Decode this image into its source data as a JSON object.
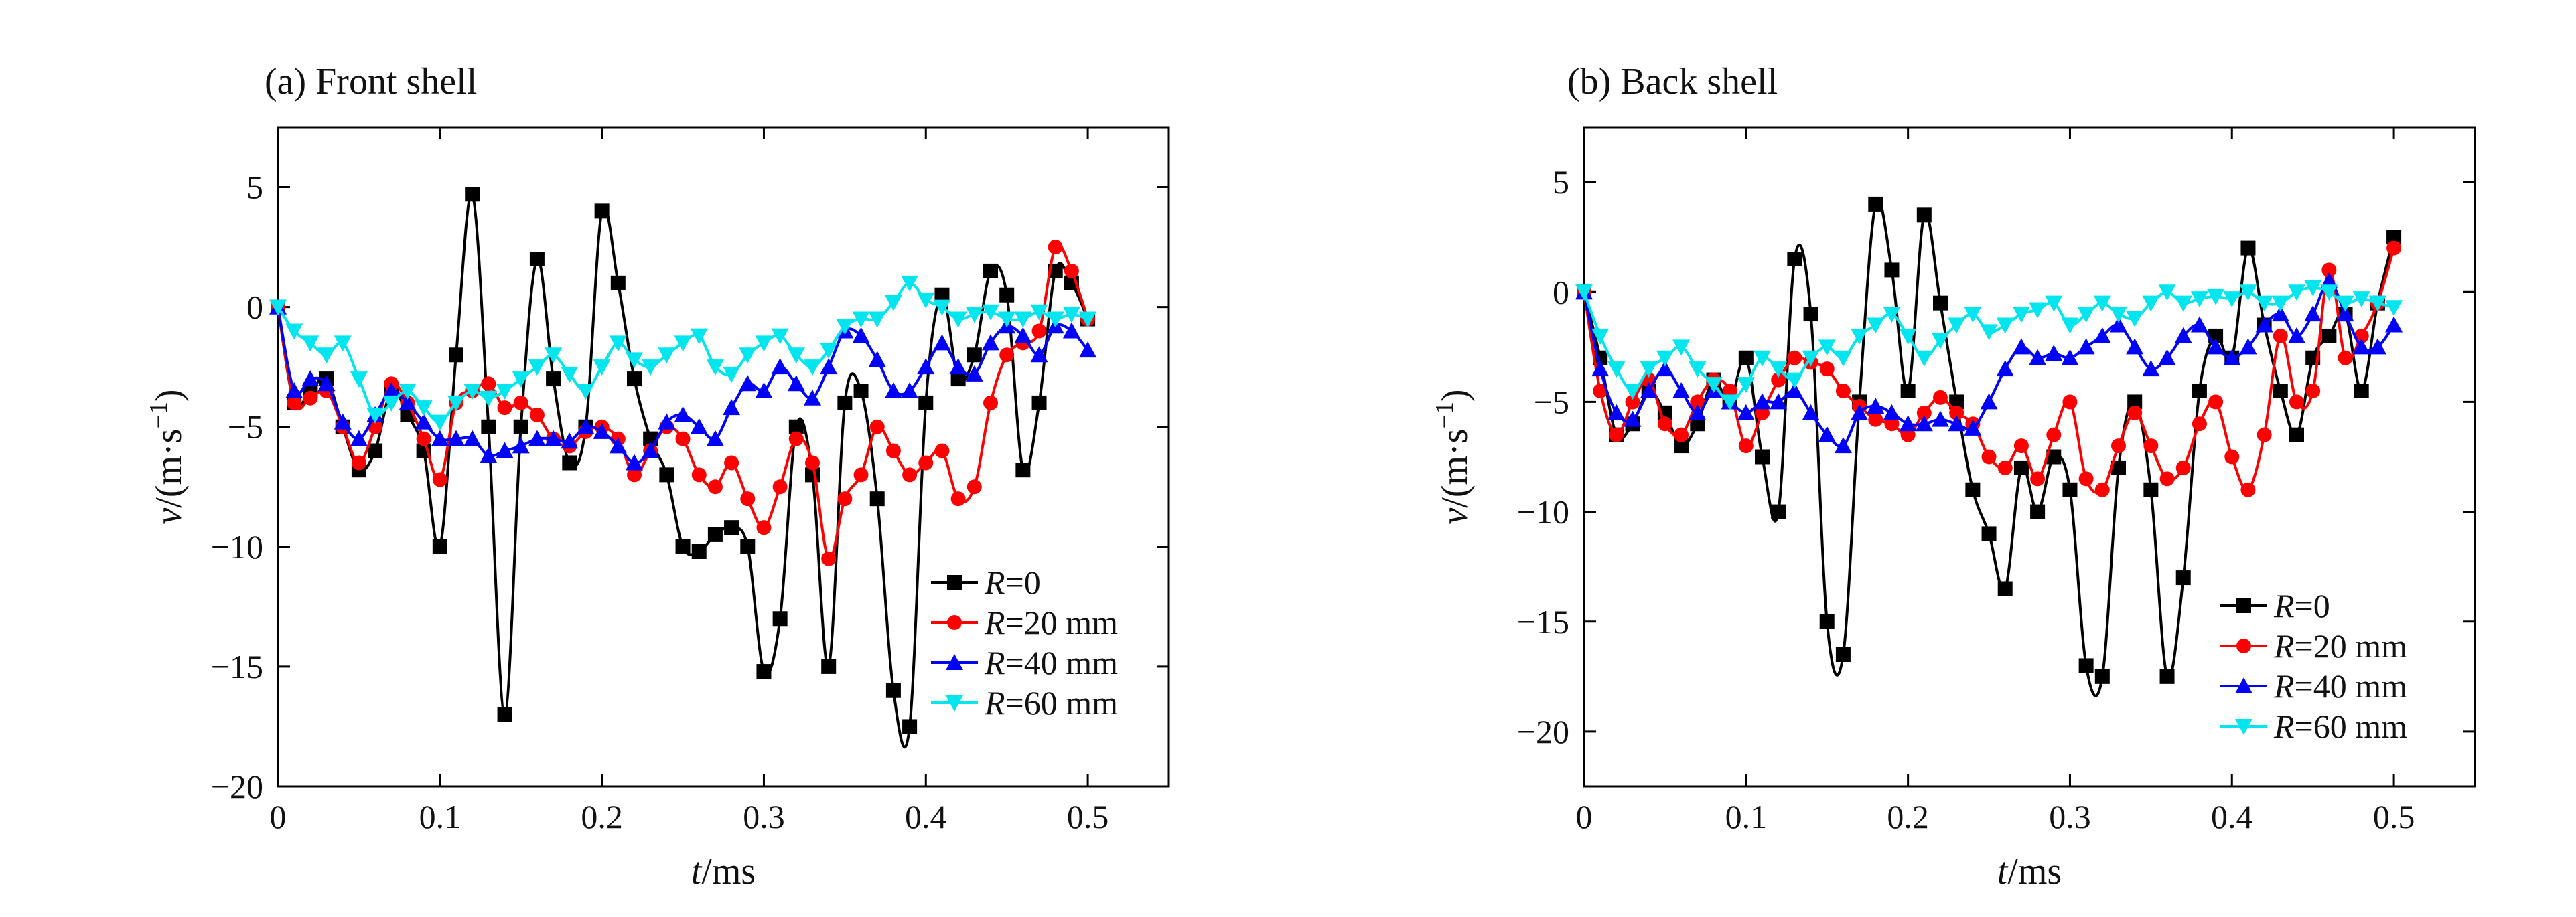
{
  "chart_data": [
    {
      "type": "line",
      "title": "(a) Front shell",
      "xlabel": {
        "var": "t",
        "unit": "/ms"
      },
      "ylabel": {
        "var": "v",
        "unit": "/(m·s",
        "sup": "−1",
        "close": ")"
      },
      "xlim": [
        0,
        0.55
      ],
      "ylim": [
        -20,
        7.5
      ],
      "xticks": [
        0,
        0.1,
        0.2,
        0.3,
        0.4,
        0.5
      ],
      "xtick_labels": [
        "0",
        "0.1",
        "0.2",
        "0.3",
        "0.4",
        "0.5"
      ],
      "yticks": [
        -20,
        -15,
        -10,
        -5,
        0,
        5
      ],
      "ytick_labels": [
        "−20",
        "−15",
        "−10",
        "−5",
        "0",
        "5"
      ],
      "grid": false,
      "legend_position": "bottom-right",
      "series": [
        {
          "legend": {
            "var": "R",
            "rest": "=0"
          },
          "color": "#000000",
          "marker": "square",
          "x": [
            0,
            0.01,
            0.02,
            0.03,
            0.04,
            0.05,
            0.06,
            0.07,
            0.08,
            0.09,
            0.1,
            0.11,
            0.12,
            0.13,
            0.14,
            0.15,
            0.16,
            0.17,
            0.18,
            0.19,
            0.2,
            0.21,
            0.22,
            0.23,
            0.24,
            0.25,
            0.26,
            0.27,
            0.28,
            0.29,
            0.3,
            0.31,
            0.32,
            0.33,
            0.34,
            0.35,
            0.36,
            0.37,
            0.38,
            0.39,
            0.4,
            0.41,
            0.42,
            0.43,
            0.44,
            0.45,
            0.46,
            0.47,
            0.48,
            0.49,
            0.5
          ],
          "y": [
            0,
            -4,
            -3.5,
            -3,
            -5,
            -6.8,
            -6,
            -3.5,
            -4.5,
            -6,
            -10,
            -2,
            4.7,
            -5,
            -17,
            -5,
            2,
            -3,
            -6.5,
            -5,
            4,
            1,
            -3,
            -5.5,
            -7,
            -10,
            -10.2,
            -9.5,
            -9.2,
            -10,
            -15.2,
            -13,
            -5,
            -7,
            -15,
            -4,
            -3.5,
            -8,
            -16,
            -17.5,
            -4,
            0.5,
            -3,
            -2,
            1.5,
            0.5,
            -6.8,
            -4,
            1.5,
            1,
            -0.5
          ]
        },
        {
          "legend": {
            "var": "R",
            "rest": "=20 mm"
          },
          "color": "#ff0000",
          "marker": "circle",
          "x": [
            0,
            0.01,
            0.02,
            0.03,
            0.04,
            0.05,
            0.06,
            0.07,
            0.08,
            0.09,
            0.1,
            0.11,
            0.12,
            0.13,
            0.14,
            0.15,
            0.16,
            0.17,
            0.18,
            0.19,
            0.2,
            0.21,
            0.22,
            0.23,
            0.24,
            0.25,
            0.26,
            0.27,
            0.28,
            0.29,
            0.3,
            0.31,
            0.32,
            0.33,
            0.34,
            0.35,
            0.36,
            0.37,
            0.38,
            0.39,
            0.4,
            0.41,
            0.42,
            0.43,
            0.44,
            0.45,
            0.46,
            0.47,
            0.48,
            0.49,
            0.5
          ],
          "y": [
            0,
            -4,
            -3.8,
            -3.5,
            -5,
            -6.5,
            -5,
            -3.2,
            -4,
            -5.5,
            -7.2,
            -4,
            -3.5,
            -3.2,
            -4.2,
            -4,
            -4.5,
            -5.5,
            -5.8,
            -5.2,
            -5,
            -5.5,
            -7,
            -6,
            -5,
            -5.5,
            -7,
            -7.5,
            -6.5,
            -8,
            -9.2,
            -7.5,
            -5.5,
            -6.5,
            -10.5,
            -8,
            -7,
            -5,
            -6,
            -7,
            -6.5,
            -6,
            -8,
            -7.5,
            -4,
            -2,
            -1.5,
            -1,
            2.5,
            1.5,
            -0.5
          ]
        },
        {
          "legend": {
            "var": "R",
            "rest": "=40 mm"
          },
          "color": "#0000ff",
          "marker": "triangle-up",
          "x": [
            0,
            0.01,
            0.02,
            0.03,
            0.04,
            0.05,
            0.06,
            0.07,
            0.08,
            0.09,
            0.1,
            0.11,
            0.12,
            0.13,
            0.14,
            0.15,
            0.16,
            0.17,
            0.18,
            0.19,
            0.2,
            0.21,
            0.22,
            0.23,
            0.24,
            0.25,
            0.26,
            0.27,
            0.28,
            0.29,
            0.3,
            0.31,
            0.32,
            0.33,
            0.34,
            0.35,
            0.36,
            0.37,
            0.38,
            0.39,
            0.4,
            0.41,
            0.42,
            0.43,
            0.44,
            0.45,
            0.46,
            0.47,
            0.48,
            0.49,
            0.5
          ],
          "y": [
            0,
            -3.5,
            -3,
            -3.2,
            -4.8,
            -5.5,
            -4.5,
            -3.5,
            -4,
            -4.8,
            -5.5,
            -5.5,
            -5.5,
            -6.2,
            -6,
            -5.8,
            -5.5,
            -5.5,
            -5.6,
            -5,
            -5.2,
            -5.8,
            -6.5,
            -6,
            -4.8,
            -4.5,
            -5,
            -5.5,
            -4.2,
            -3.2,
            -3.5,
            -2.5,
            -3.2,
            -3.8,
            -2.5,
            -1,
            -1.2,
            -2.2,
            -3.5,
            -3.5,
            -2.5,
            -1.5,
            -2.5,
            -2.8,
            -1.5,
            -0.8,
            -1.2,
            -2,
            -0.8,
            -1,
            -1.8
          ]
        },
        {
          "legend": {
            "var": "R",
            "rest": "=60 mm"
          },
          "color": "#00e5ee",
          "marker": "triangle-down",
          "x": [
            0,
            0.01,
            0.02,
            0.03,
            0.04,
            0.05,
            0.06,
            0.07,
            0.08,
            0.09,
            0.1,
            0.11,
            0.12,
            0.13,
            0.14,
            0.15,
            0.16,
            0.17,
            0.18,
            0.19,
            0.2,
            0.21,
            0.22,
            0.23,
            0.24,
            0.25,
            0.26,
            0.27,
            0.28,
            0.29,
            0.3,
            0.31,
            0.32,
            0.33,
            0.34,
            0.35,
            0.36,
            0.37,
            0.38,
            0.39,
            0.4,
            0.41,
            0.42,
            0.43,
            0.44,
            0.45,
            0.46,
            0.47,
            0.48,
            0.49,
            0.5
          ],
          "y": [
            0,
            -1,
            -1.5,
            -2,
            -1.5,
            -3,
            -4.5,
            -4,
            -3.5,
            -4.2,
            -4.8,
            -4,
            -3.5,
            -3.8,
            -3.5,
            -3,
            -2.5,
            -2,
            -2.8,
            -3.5,
            -2.5,
            -1.5,
            -2.2,
            -2.5,
            -2,
            -1.5,
            -1.2,
            -2.5,
            -2.8,
            -2,
            -1.5,
            -1.2,
            -2,
            -2.5,
            -1.8,
            -0.8,
            -0.5,
            -0.5,
            0.2,
            1,
            0.3,
            0,
            -0.5,
            -0.3,
            -0.2,
            -0.5,
            -0.5,
            -0.2,
            -0.5,
            -0.3,
            -0.5
          ]
        }
      ]
    },
    {
      "type": "line",
      "title": "(b) Back shell",
      "xlabel": {
        "var": "t",
        "unit": "/ms"
      },
      "ylabel": {
        "var": "v",
        "unit": "/(m·s",
        "sup": "−1",
        "close": ")"
      },
      "xlim": [
        0,
        0.55
      ],
      "ylim": [
        -22.5,
        7.5
      ],
      "xticks": [
        0,
        0.1,
        0.2,
        0.3,
        0.4,
        0.5
      ],
      "xtick_labels": [
        "0",
        "0.1",
        "0.2",
        "0.3",
        "0.4",
        "0.5"
      ],
      "yticks": [
        -20,
        -15,
        -10,
        -5,
        0,
        5
      ],
      "ytick_labels": [
        "−20",
        "−15",
        "−10",
        "−5",
        "0",
        "5"
      ],
      "grid": false,
      "legend_position": "bottom-right",
      "series": [
        {
          "legend": {
            "var": "R",
            "rest": "=0"
          },
          "color": "#000000",
          "marker": "square",
          "x": [
            0,
            0.01,
            0.02,
            0.03,
            0.04,
            0.05,
            0.06,
            0.07,
            0.08,
            0.09,
            0.1,
            0.11,
            0.12,
            0.13,
            0.14,
            0.15,
            0.16,
            0.17,
            0.18,
            0.19,
            0.2,
            0.21,
            0.22,
            0.23,
            0.24,
            0.25,
            0.26,
            0.27,
            0.28,
            0.29,
            0.3,
            0.31,
            0.32,
            0.33,
            0.34,
            0.35,
            0.36,
            0.37,
            0.38,
            0.39,
            0.4,
            0.41,
            0.42,
            0.43,
            0.44,
            0.45,
            0.46,
            0.47,
            0.48,
            0.49,
            0.5
          ],
          "y": [
            0,
            -3,
            -6.5,
            -6,
            -4.5,
            -5.5,
            -7,
            -6,
            -4,
            -5,
            -3,
            -7.5,
            -10,
            1.5,
            -1,
            -15,
            -16.5,
            -5,
            4,
            1,
            -4.5,
            3.5,
            -0.5,
            -5,
            -9,
            -11,
            -13.5,
            -8,
            -10,
            -7.5,
            -9,
            -17,
            -17.5,
            -8,
            -5,
            -9,
            -17.5,
            -13,
            -4.5,
            -2,
            -3,
            2,
            -1.5,
            -4.5,
            -6.5,
            -3,
            -2,
            -1,
            -4.5,
            -0.5,
            2.5
          ]
        },
        {
          "legend": {
            "var": "R",
            "rest": "=20 mm"
          },
          "color": "#ff0000",
          "marker": "circle",
          "x": [
            0,
            0.01,
            0.02,
            0.03,
            0.04,
            0.05,
            0.06,
            0.07,
            0.08,
            0.09,
            0.1,
            0.11,
            0.12,
            0.13,
            0.14,
            0.15,
            0.16,
            0.17,
            0.18,
            0.19,
            0.2,
            0.21,
            0.22,
            0.23,
            0.24,
            0.25,
            0.26,
            0.27,
            0.28,
            0.29,
            0.3,
            0.31,
            0.32,
            0.33,
            0.34,
            0.35,
            0.36,
            0.37,
            0.38,
            0.39,
            0.4,
            0.41,
            0.42,
            0.43,
            0.44,
            0.45,
            0.46,
            0.47,
            0.48,
            0.49,
            0.5
          ],
          "y": [
            0,
            -4.5,
            -6.5,
            -5,
            -4,
            -6,
            -6.5,
            -5,
            -4,
            -4.5,
            -7,
            -5.5,
            -4,
            -3,
            -3.2,
            -3.5,
            -4.5,
            -5.2,
            -5.8,
            -6,
            -6.5,
            -5.5,
            -4.8,
            -5.5,
            -6,
            -7.5,
            -8,
            -7,
            -8.5,
            -6.5,
            -5,
            -8.5,
            -9,
            -7,
            -5.5,
            -7,
            -8.5,
            -8,
            -6,
            -5,
            -7.5,
            -9,
            -6.5,
            -2,
            -5,
            -4.5,
            1,
            -3,
            -2,
            -0.5,
            2
          ]
        },
        {
          "legend": {
            "var": "R",
            "rest": "=40 mm"
          },
          "color": "#0000ff",
          "marker": "triangle-up",
          "x": [
            0,
            0.01,
            0.02,
            0.03,
            0.04,
            0.05,
            0.06,
            0.07,
            0.08,
            0.09,
            0.1,
            0.11,
            0.12,
            0.13,
            0.14,
            0.15,
            0.16,
            0.17,
            0.18,
            0.19,
            0.2,
            0.21,
            0.22,
            0.23,
            0.24,
            0.25,
            0.26,
            0.27,
            0.28,
            0.29,
            0.3,
            0.31,
            0.32,
            0.33,
            0.34,
            0.35,
            0.36,
            0.37,
            0.38,
            0.39,
            0.4,
            0.41,
            0.42,
            0.43,
            0.44,
            0.45,
            0.46,
            0.47,
            0.48,
            0.49,
            0.5
          ],
          "y": [
            0,
            -3.5,
            -5.5,
            -5.8,
            -4.5,
            -3.5,
            -4.5,
            -5.5,
            -4.5,
            -5,
            -5.5,
            -5,
            -5,
            -4.5,
            -5.5,
            -6.5,
            -7,
            -5.5,
            -5.2,
            -5.5,
            -6,
            -6,
            -5.8,
            -6,
            -6.2,
            -5,
            -3.5,
            -2.5,
            -3,
            -2.8,
            -3,
            -2.5,
            -2,
            -1.5,
            -2.5,
            -3.5,
            -3,
            -2,
            -1.5,
            -2.5,
            -3,
            -2.5,
            -1.5,
            -1,
            -2,
            -1,
            0.5,
            -1,
            -2.5,
            -2.5,
            -1.5
          ]
        },
        {
          "legend": {
            "var": "R",
            "rest": "=60 mm"
          },
          "color": "#00e5ee",
          "marker": "triangle-down",
          "x": [
            0,
            0.01,
            0.02,
            0.03,
            0.04,
            0.05,
            0.06,
            0.07,
            0.08,
            0.09,
            0.1,
            0.11,
            0.12,
            0.13,
            0.14,
            0.15,
            0.16,
            0.17,
            0.18,
            0.19,
            0.2,
            0.21,
            0.22,
            0.23,
            0.24,
            0.25,
            0.26,
            0.27,
            0.28,
            0.29,
            0.3,
            0.31,
            0.32,
            0.33,
            0.34,
            0.35,
            0.36,
            0.37,
            0.38,
            0.39,
            0.4,
            0.41,
            0.42,
            0.43,
            0.44,
            0.45,
            0.46,
            0.47,
            0.48,
            0.49,
            0.5
          ],
          "y": [
            0,
            -2,
            -3.5,
            -4.5,
            -3.5,
            -3,
            -2.5,
            -3.5,
            -4.2,
            -5,
            -4.2,
            -3,
            -3.5,
            -4,
            -3,
            -2.5,
            -3,
            -2,
            -1.5,
            -1,
            -2,
            -3,
            -2.2,
            -1.5,
            -1,
            -1.8,
            -1.5,
            -1,
            -0.8,
            -0.5,
            -1.5,
            -1,
            -0.5,
            -1,
            -1.2,
            -0.5,
            0,
            -0.5,
            -0.3,
            -0.2,
            -0.3,
            0,
            -0.5,
            -0.5,
            0,
            0.2,
            0,
            -0.5,
            -0.3,
            -0.5,
            -0.7
          ]
        }
      ]
    }
  ]
}
